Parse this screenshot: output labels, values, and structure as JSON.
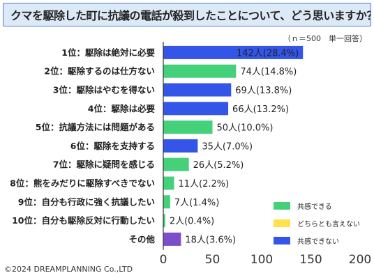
{
  "title": "クマを駆除した町に抗議の電話が殺到したことについて、どう思いますか？",
  "note": "（ｎ＝500　単一回答）",
  "copyright": "©2024 DREAMPLANNING Co.,LTD",
  "colors": {
    "positive": "#44d17a",
    "neutral": "#ffe14d",
    "negative": "#3355e8",
    "other": "#7b4fc9"
  },
  "chart_data": {
    "type": "bar",
    "orientation": "horizontal",
    "categories": [
      "1位：駆除は絶対に必要",
      "2位：駆除するのは仕方ない",
      "3位：駆除はやむを得ない",
      "4位：駆除は必要",
      "5位：抗議方法には問題がある",
      "6位：駆除を支持する",
      "7位：駆除に疑問を感じる",
      "8位：熊をみだりに駆除すべきでない",
      "9位：自分も行政に強く抗議したい",
      "10位：自分も駆除反対に行動したい",
      "その他"
    ],
    "values": [
      142,
      74,
      69,
      66,
      50,
      35,
      26,
      11,
      7,
      2,
      18
    ],
    "value_labels": [
      "142人(28.4%)",
      "74人(14.8%)",
      "69人(13.8%)",
      "66人(13.2%)",
      "50人(10.0%)",
      "35人(7.0%)",
      "26人(5.2%)",
      "11人(2.2%)",
      "7人(1.4%)",
      "2人(0.4%)",
      "18人(3.6%)"
    ],
    "groups": [
      "negative",
      "positive",
      "negative",
      "negative",
      "positive",
      "negative",
      "positive",
      "positive",
      "positive",
      "positive",
      "other"
    ],
    "xlim": [
      0,
      200
    ],
    "xticks": [
      0,
      50,
      100,
      150,
      200
    ],
    "grid": false,
    "legend": {
      "position": "bottom-right",
      "entries": [
        {
          "label": "共感できる",
          "color": "#44d17a"
        },
        {
          "label": "どちらとも言えない",
          "color": "#ffe14d"
        },
        {
          "label": "共感できない",
          "color": "#3355e8"
        }
      ]
    }
  }
}
